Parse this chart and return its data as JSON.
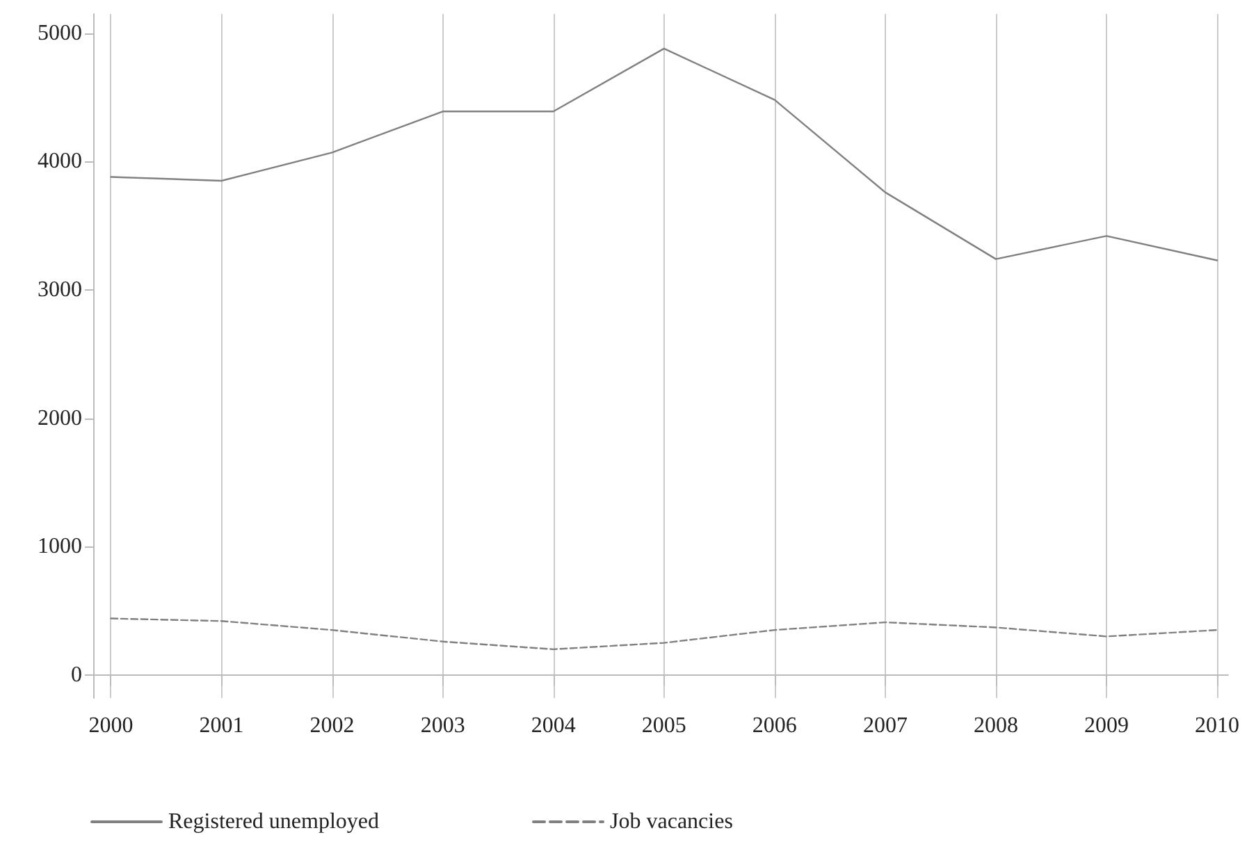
{
  "chart_data": {
    "type": "line",
    "x": [
      2000,
      2001,
      2002,
      2003,
      2004,
      2005,
      2006,
      2007,
      2008,
      2009,
      2010
    ],
    "series": [
      {
        "name": "Registered unemployed",
        "color": "#808080",
        "line_style": "solid",
        "values": [
          3880,
          3850,
          4070,
          4390,
          4390,
          4880,
          4480,
          3760,
          3240,
          3420,
          3230
        ]
      },
      {
        "name": "Job vacancies",
        "color": "#808080",
        "line_style": "dashed",
        "values": [
          440,
          420,
          350,
          260,
          200,
          250,
          350,
          410,
          370,
          300,
          350
        ]
      }
    ],
    "xlim": [
      1999.84,
      2010.1
    ],
    "xticks": [
      2000,
      2001,
      2002,
      2003,
      2004,
      2005,
      2006,
      2007,
      2008,
      2009,
      2010
    ],
    "ylim": [
      -180,
      5150
    ],
    "yticks": [
      0,
      1000,
      2000,
      3000,
      4000,
      5000
    ],
    "grid": "x",
    "legend": "bottom",
    "marker": "none"
  }
}
